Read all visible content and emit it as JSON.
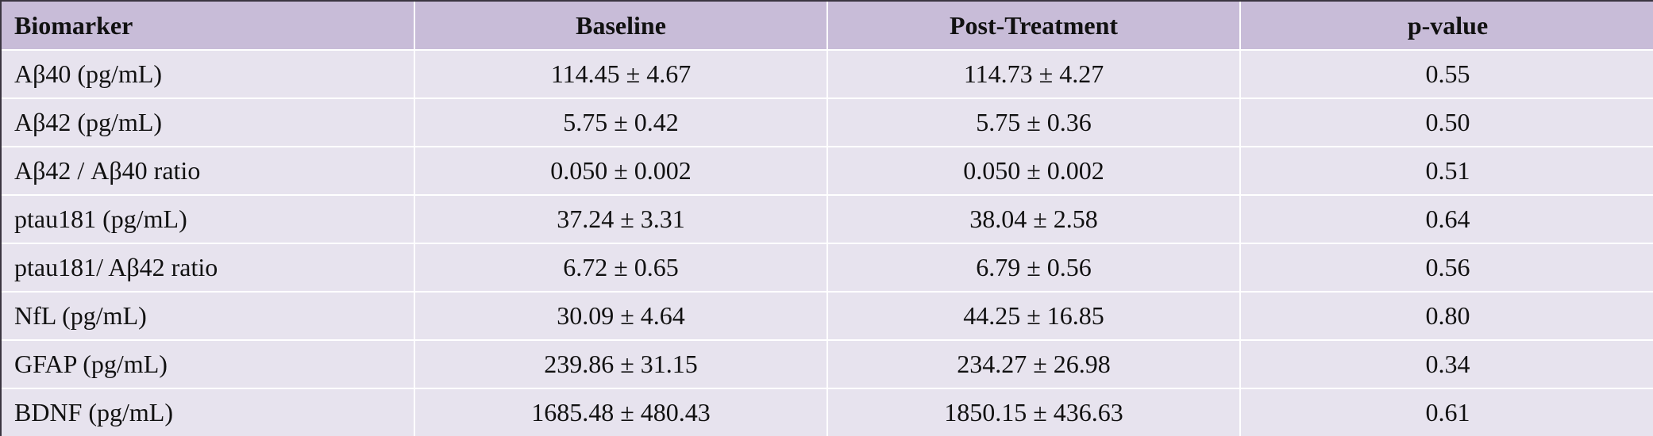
{
  "table": {
    "headers": [
      "Biomarker",
      "Baseline",
      "Post-Treatment",
      "p-value"
    ],
    "rows": [
      [
        "Aβ40 (pg/mL)",
        "114.45 ± 4.67",
        "114.73 ± 4.27",
        "0.55"
      ],
      [
        "Aβ42 (pg/mL)",
        "5.75 ± 0.42",
        "5.75 ± 0.36",
        "0.50"
      ],
      [
        "Aβ42 / Aβ40 ratio",
        "0.050 ± 0.002",
        "0.050 ± 0.002",
        "0.51"
      ],
      [
        "ptau181 (pg/mL)",
        "37.24 ± 3.31",
        "38.04 ± 2.58",
        "0.64"
      ],
      [
        "ptau181/ Aβ42 ratio",
        "6.72 ± 0.65",
        "6.79 ± 0.56",
        "0.56"
      ],
      [
        "NfL (pg/mL)",
        "30.09 ± 4.64",
        "44.25 ± 16.85",
        "0.80"
      ],
      [
        "GFAP (pg/mL)",
        "239.86 ± 31.15",
        "234.27 ± 26.98",
        "0.34"
      ],
      [
        "BDNF (pg/mL)",
        "1685.48 ± 480.43",
        "1850.15 ± 436.63",
        "0.61"
      ]
    ]
  },
  "colors": {
    "header_background": "#c8bcd8",
    "row_background": "#e7e3ee",
    "grid_lines": "#ffffff",
    "outer_border": "#3a3540"
  }
}
